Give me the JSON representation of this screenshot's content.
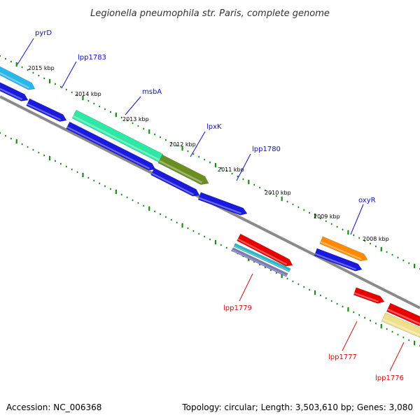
{
  "title": "Legionella pneumophila str. Paris, complete genome",
  "footer": {
    "accession": "Accession: NC_006368",
    "summary": "Topology: circular; Length: 3,503,610 bp; Genes: 3,080"
  },
  "colors": {
    "backbone": "#8a8a8a",
    "tick": "#1e8a1e",
    "forward_label": "#1010c0",
    "reverse_label": "#d01010"
  },
  "scale_marks": [
    {
      "label": "2015 kbp"
    },
    {
      "label": "2014 kbp"
    },
    {
      "label": "2013 kbp"
    },
    {
      "label": "2012 kbp"
    },
    {
      "label": "2011 kbp"
    },
    {
      "label": "2010 kbp"
    },
    {
      "label": "2009 kbp"
    },
    {
      "label": "2008 kbp"
    }
  ],
  "gene_labels": [
    {
      "name": "pyrD",
      "strand": "forward"
    },
    {
      "name": "lpp1783",
      "strand": "forward"
    },
    {
      "name": "msbA",
      "strand": "forward"
    },
    {
      "name": "lpxK",
      "strand": "forward"
    },
    {
      "name": "lpp1780",
      "strand": "forward"
    },
    {
      "name": "oxyR",
      "strand": "forward"
    },
    {
      "name": "lpp1779",
      "strand": "reverse"
    },
    {
      "name": "lpp1777",
      "strand": "reverse"
    },
    {
      "name": "lpp1776",
      "strand": "reverse"
    }
  ],
  "features": [
    {
      "kind": "cds-arrow",
      "color": "#29b6e8"
    },
    {
      "kind": "gene-arrow",
      "color": "#1a1adc"
    },
    {
      "kind": "gene-arrow",
      "color": "#1a1adc"
    },
    {
      "kind": "cds-arrow",
      "color": "#2ee8a6"
    },
    {
      "kind": "cds-arrow",
      "color": "#6b8e23"
    },
    {
      "kind": "gene-arrow",
      "color": "#1a1adc"
    },
    {
      "kind": "gene-arrow",
      "color": "#1a1adc"
    },
    {
      "kind": "gene-arrow",
      "color": "#1a1adc"
    },
    {
      "kind": "cds-arrow",
      "color": "#ff8c00"
    },
    {
      "kind": "gene-arrow",
      "color": "#1a1adc"
    },
    {
      "kind": "gene-arrow",
      "color": "#e80000"
    },
    {
      "kind": "cds-arrow",
      "color": "#28b8c8"
    },
    {
      "kind": "cds-arrow",
      "color": "#7b7bb8"
    },
    {
      "kind": "gene-arrow",
      "color": "#e80000"
    },
    {
      "kind": "gene-arrow",
      "color": "#e80000"
    },
    {
      "kind": "cds-arrow",
      "color": "#f0e08c"
    }
  ]
}
